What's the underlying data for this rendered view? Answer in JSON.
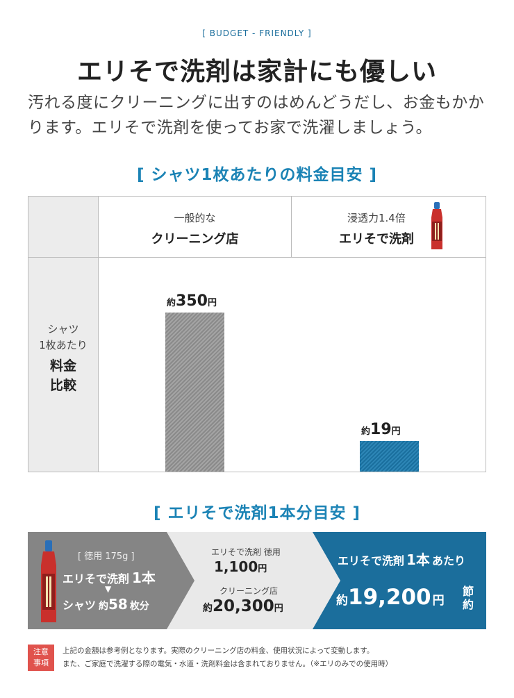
{
  "header": {
    "eyebrow": "[ BUDGET - FRIENDLY ]",
    "headline": "エリそで洗剤は家計にも優しい",
    "lead_line1": "汚れる度にクリーニングに出すのはめんどうだし、お金もかか",
    "lead_line2": "ります。エリそで洗剤を使ってお家で洗濯しましょう。"
  },
  "comparison": {
    "title": "[ シャツ1枚あたりの料金目安 ]",
    "col1_sub": "一般的な",
    "col1_main": "クリーニング店",
    "col2_sub": "浸透力1.4倍",
    "col2_main": "エリそで洗剤",
    "side_sub1": "シャツ",
    "side_sub2": "1枚あたり",
    "side_main1": "料金",
    "side_main2": "比較",
    "bar1_prefix": "約",
    "bar1_value": "350",
    "bar1_unit": "円",
    "bar2_prefix": "約",
    "bar2_value": "19",
    "bar2_unit": "円"
  },
  "bottle_cost": {
    "title": "[ エリそで洗剤1本分目安 ]",
    "size_label": "[ 徳用 175g ]",
    "product_line_a": "エリそで洗剤",
    "product_line_b": "1本",
    "arrow": "▼",
    "shirts_a": "シャツ",
    "shirts_b": "約",
    "shirts_c": "58",
    "shirts_d": "枚分",
    "mid_label1": "エリそで洗剤 徳用",
    "mid_value1": "1,100",
    "mid_unit1": "円",
    "mid_label2": "クリーニング店",
    "mid_prefix2": "約",
    "mid_value2": "20,300",
    "mid_unit2": "円",
    "right_head_a": "エリそで洗剤",
    "right_head_b": "1本",
    "right_head_c": "あたり",
    "right_prefix": "約",
    "right_value": "19,200",
    "right_unit": "円",
    "right_tag1": "節",
    "right_tag2": "約"
  },
  "notice": {
    "tag1": "注意",
    "tag2": "事項",
    "line1": "上記の金額は参考例となります。実際のクリーニング店の料金、使用状況によって変動します。",
    "line2": "また、ご家庭で洗濯する際の電気・水道・洗剤料金は含まれておりません。（※エリのみでの使用時）"
  },
  "chart_data": {
    "type": "bar",
    "categories": [
      "クリーニング店",
      "エリそで洗剤"
    ],
    "values": [
      350,
      19
    ],
    "ylim": [
      0,
      400
    ]
  },
  "colors": {
    "accent": "#1b83b5",
    "blue_band": "#1b6e9c",
    "gray_band": "#858585",
    "notice_tag": "#e0534d"
  }
}
